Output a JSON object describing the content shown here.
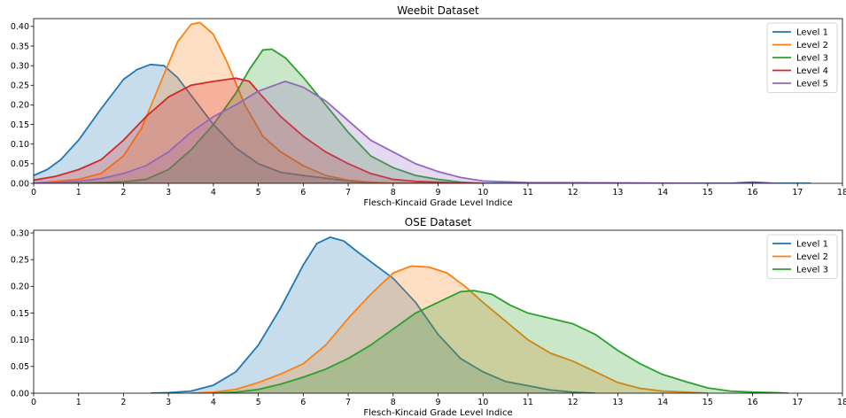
{
  "chart_data": [
    {
      "type": "area",
      "title": "Weebit Dataset",
      "xlabel": "Flesch-Kincaid Grade Level Indice",
      "ylabel": "",
      "xlim": [
        0,
        18
      ],
      "ylim": [
        0,
        0.42
      ],
      "xticks": [
        "0",
        "1",
        "2",
        "3",
        "4",
        "5",
        "6",
        "7",
        "8",
        "9",
        "10",
        "11",
        "12",
        "13",
        "14",
        "15",
        "16",
        "17",
        "18"
      ],
      "yticks": [
        "0.00",
        "0.05",
        "0.10",
        "0.15",
        "0.20",
        "0.25",
        "0.30",
        "0.35",
        "0.40"
      ],
      "grid": false,
      "legend_position": "top-right",
      "series": [
        {
          "name": "Level 1",
          "color": "#1f77b4",
          "points": [
            [
              0,
              0.02
            ],
            [
              0.3,
              0.035
            ],
            [
              0.6,
              0.06
            ],
            [
              1,
              0.11
            ],
            [
              1.5,
              0.19
            ],
            [
              2,
              0.265
            ],
            [
              2.3,
              0.29
            ],
            [
              2.6,
              0.303
            ],
            [
              2.9,
              0.3
            ],
            [
              3.2,
              0.27
            ],
            [
              3.6,
              0.21
            ],
            [
              4,
              0.15
            ],
            [
              4.5,
              0.09
            ],
            [
              5,
              0.05
            ],
            [
              5.5,
              0.028
            ],
            [
              6,
              0.02
            ],
            [
              6.5,
              0.013
            ],
            [
              7,
              0.006
            ],
            [
              7.5,
              0.002
            ],
            [
              8,
              0.0
            ],
            [
              15.5,
              0.0
            ],
            [
              16,
              0.003
            ],
            [
              16.5,
              0.0
            ],
            [
              17.3,
              0.0
            ]
          ]
        },
        {
          "name": "Level 2",
          "color": "#ff7f0e",
          "points": [
            [
              0,
              0.0
            ],
            [
              1,
              0.01
            ],
            [
              1.5,
              0.025
            ],
            [
              2,
              0.07
            ],
            [
              2.4,
              0.14
            ],
            [
              2.8,
              0.25
            ],
            [
              3.2,
              0.36
            ],
            [
              3.5,
              0.405
            ],
            [
              3.7,
              0.41
            ],
            [
              4,
              0.38
            ],
            [
              4.3,
              0.31
            ],
            [
              4.7,
              0.2
            ],
            [
              5.1,
              0.12
            ],
            [
              5.5,
              0.08
            ],
            [
              6,
              0.045
            ],
            [
              6.5,
              0.02
            ],
            [
              7,
              0.008
            ],
            [
              7.5,
              0.003
            ],
            [
              8,
              0.0
            ],
            [
              9,
              0.0
            ]
          ]
        },
        {
          "name": "Level 3",
          "color": "#2ca02c",
          "points": [
            [
              0,
              0.0
            ],
            [
              1,
              0.0
            ],
            [
              2,
              0.004
            ],
            [
              2.5,
              0.01
            ],
            [
              3,
              0.035
            ],
            [
              3.5,
              0.085
            ],
            [
              4,
              0.15
            ],
            [
              4.5,
              0.23
            ],
            [
              4.8,
              0.29
            ],
            [
              5.1,
              0.34
            ],
            [
              5.3,
              0.342
            ],
            [
              5.6,
              0.32
            ],
            [
              6,
              0.27
            ],
            [
              6.5,
              0.2
            ],
            [
              7,
              0.13
            ],
            [
              7.5,
              0.07
            ],
            [
              8,
              0.04
            ],
            [
              8.5,
              0.02
            ],
            [
              9,
              0.01
            ],
            [
              9.5,
              0.003
            ],
            [
              10,
              0.0
            ]
          ]
        },
        {
          "name": "Level 4",
          "color": "#d62728",
          "points": [
            [
              0,
              0.008
            ],
            [
              0.5,
              0.018
            ],
            [
              1,
              0.035
            ],
            [
              1.5,
              0.06
            ],
            [
              2,
              0.11
            ],
            [
              2.5,
              0.17
            ],
            [
              3,
              0.22
            ],
            [
              3.5,
              0.25
            ],
            [
              4,
              0.26
            ],
            [
              4.5,
              0.268
            ],
            [
              4.8,
              0.26
            ],
            [
              5.1,
              0.22
            ],
            [
              5.5,
              0.17
            ],
            [
              6,
              0.12
            ],
            [
              6.5,
              0.08
            ],
            [
              7,
              0.05
            ],
            [
              7.5,
              0.025
            ],
            [
              8,
              0.01
            ],
            [
              8.5,
              0.005
            ],
            [
              9,
              0.003
            ],
            [
              9.5,
              0.0
            ],
            [
              10,
              0.0
            ]
          ]
        },
        {
          "name": "Level 5",
          "color": "#9467bd",
          "points": [
            [
              0,
              0.0
            ],
            [
              1,
              0.005
            ],
            [
              1.5,
              0.012
            ],
            [
              2,
              0.025
            ],
            [
              2.5,
              0.045
            ],
            [
              3,
              0.08
            ],
            [
              3.5,
              0.13
            ],
            [
              4,
              0.17
            ],
            [
              4.5,
              0.2
            ],
            [
              5,
              0.235
            ],
            [
              5.6,
              0.26
            ],
            [
              6,
              0.245
            ],
            [
              6.5,
              0.21
            ],
            [
              7,
              0.16
            ],
            [
              7.5,
              0.11
            ],
            [
              8,
              0.08
            ],
            [
              8.5,
              0.05
            ],
            [
              9,
              0.03
            ],
            [
              9.5,
              0.015
            ],
            [
              10,
              0.006
            ],
            [
              11,
              0.002
            ],
            [
              13,
              0.001
            ],
            [
              15,
              0.0
            ],
            [
              16.5,
              0.0
            ]
          ]
        }
      ]
    },
    {
      "type": "area",
      "title": "OSE Dataset",
      "xlabel": "Flesch-Kincaid Grade Level Indice",
      "ylabel": "",
      "xlim": [
        0,
        18
      ],
      "ylim": [
        0,
        0.305
      ],
      "xticks": [
        "0",
        "1",
        "2",
        "3",
        "4",
        "5",
        "6",
        "7",
        "8",
        "9",
        "10",
        "11",
        "12",
        "13",
        "14",
        "15",
        "16",
        "17",
        "18"
      ],
      "yticks": [
        "0.00",
        "0.05",
        "0.10",
        "0.15",
        "0.20",
        "0.25",
        "0.30"
      ],
      "grid": false,
      "legend_position": "top-right",
      "series": [
        {
          "name": "Level 1",
          "color": "#1f77b4",
          "points": [
            [
              2.6,
              0.0
            ],
            [
              3,
              0.001
            ],
            [
              3.5,
              0.004
            ],
            [
              4,
              0.015
            ],
            [
              4.5,
              0.04
            ],
            [
              5,
              0.09
            ],
            [
              5.5,
              0.16
            ],
            [
              6,
              0.24
            ],
            [
              6.3,
              0.28
            ],
            [
              6.6,
              0.292
            ],
            [
              6.9,
              0.285
            ],
            [
              7.2,
              0.265
            ],
            [
              7.6,
              0.24
            ],
            [
              8,
              0.215
            ],
            [
              8.5,
              0.17
            ],
            [
              9,
              0.11
            ],
            [
              9.5,
              0.065
            ],
            [
              10,
              0.04
            ],
            [
              10.5,
              0.022
            ],
            [
              11,
              0.014
            ],
            [
              11.5,
              0.006
            ],
            [
              12,
              0.002
            ],
            [
              12.5,
              0.0
            ]
          ]
        },
        {
          "name": "Level 2",
          "color": "#ff7f0e",
          "points": [
            [
              3.5,
              0.0
            ],
            [
              4,
              0.002
            ],
            [
              4.5,
              0.007
            ],
            [
              5,
              0.02
            ],
            [
              5.5,
              0.036
            ],
            [
              6,
              0.055
            ],
            [
              6.5,
              0.09
            ],
            [
              7,
              0.14
            ],
            [
              7.5,
              0.185
            ],
            [
              8,
              0.225
            ],
            [
              8.4,
              0.238
            ],
            [
              8.8,
              0.236
            ],
            [
              9.2,
              0.225
            ],
            [
              9.6,
              0.2
            ],
            [
              10,
              0.17
            ],
            [
              10.5,
              0.135
            ],
            [
              11,
              0.1
            ],
            [
              11.5,
              0.075
            ],
            [
              12,
              0.06
            ],
            [
              12.5,
              0.04
            ],
            [
              13,
              0.02
            ],
            [
              13.5,
              0.009
            ],
            [
              14,
              0.004
            ],
            [
              14.5,
              0.002
            ],
            [
              15,
              0.0
            ]
          ]
        },
        {
          "name": "Level 3",
          "color": "#2ca02c",
          "points": [
            [
              4,
              0.0
            ],
            [
              4.5,
              0.002
            ],
            [
              5,
              0.007
            ],
            [
              5.5,
              0.017
            ],
            [
              6,
              0.03
            ],
            [
              6.5,
              0.045
            ],
            [
              7,
              0.065
            ],
            [
              7.5,
              0.09
            ],
            [
              8,
              0.12
            ],
            [
              8.5,
              0.15
            ],
            [
              9,
              0.17
            ],
            [
              9.5,
              0.19
            ],
            [
              9.8,
              0.192
            ],
            [
              10.2,
              0.185
            ],
            [
              10.6,
              0.165
            ],
            [
              11,
              0.15
            ],
            [
              11.5,
              0.14
            ],
            [
              12,
              0.13
            ],
            [
              12.5,
              0.11
            ],
            [
              13,
              0.08
            ],
            [
              13.5,
              0.055
            ],
            [
              14,
              0.035
            ],
            [
              14.5,
              0.022
            ],
            [
              15,
              0.01
            ],
            [
              15.5,
              0.004
            ],
            [
              16,
              0.002
            ],
            [
              16.5,
              0.001
            ],
            [
              16.8,
              0.0
            ]
          ]
        }
      ]
    }
  ]
}
